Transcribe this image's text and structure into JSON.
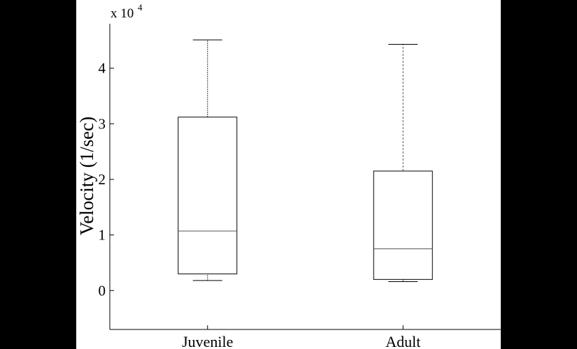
{
  "colors": {
    "page_background": "#000000",
    "panel_background": "#ffffff",
    "ink": "#000000",
    "whisker": "#555555"
  },
  "chart_data": {
    "type": "boxplot",
    "ylabel": "Velocity (1/sec)",
    "ylim": [
      -0.7,
      4.8
    ],
    "yticks": [
      0,
      1,
      2,
      3,
      4
    ],
    "y_multiplier": {
      "base": "x 10",
      "exponent": "4"
    },
    "categories": [
      "Juvenile",
      "Adult"
    ],
    "boxes": [
      {
        "label": "Juvenile",
        "whisker_low": 0.18,
        "q1": 0.3,
        "median": 1.07,
        "q3": 3.12,
        "whisker_high": 4.51,
        "whisker_style": "dotted"
      },
      {
        "label": "Adult",
        "whisker_low": 0.16,
        "q1": 0.2,
        "median": 0.75,
        "q3": 2.15,
        "whisker_high": 4.43,
        "whisker_style": "dashed"
      }
    ],
    "grid": false,
    "legend": "none",
    "box_fill": "none"
  }
}
